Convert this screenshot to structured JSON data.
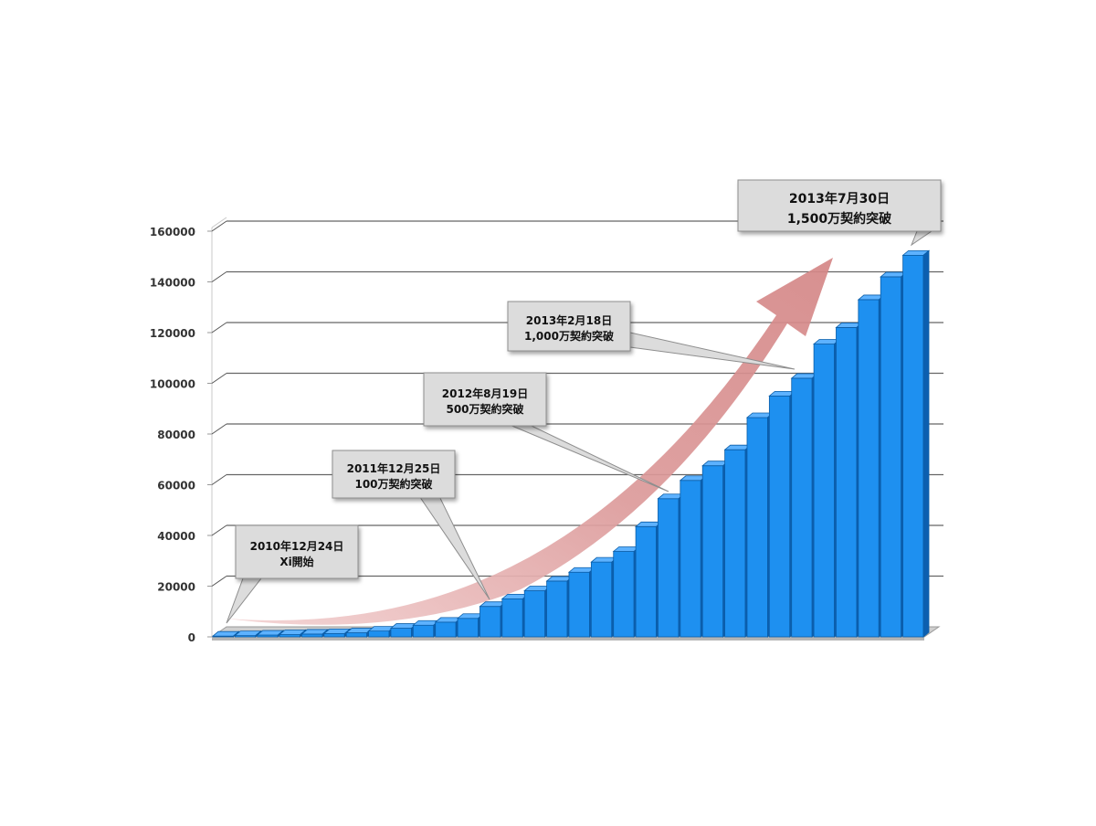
{
  "chart_data": {
    "type": "bar",
    "style": "3d-column",
    "title": "",
    "xlabel": "",
    "ylabel": "",
    "ylim": [
      0,
      160000
    ],
    "yticks": [
      0,
      20000,
      40000,
      60000,
      80000,
      100000,
      120000,
      140000,
      160000
    ],
    "grid": true,
    "legend": false,
    "bar_color": "#1E90F0",
    "arrow_color": "#D98B8B",
    "values": [
      300,
      500,
      700,
      900,
      1100,
      1300,
      1600,
      2300,
      3400,
      4600,
      5800,
      7300,
      12000,
      15000,
      18200,
      22000,
      25500,
      29500,
      33700,
      43500,
      54500,
      61700,
      67500,
      73800,
      86500,
      95000,
      102000,
      115500,
      122000,
      133000,
      142000,
      150500
    ],
    "annotations": [
      {
        "line1": "2010年12月24日",
        "line2": "Xi開始",
        "bar_index": 0,
        "highlight": false
      },
      {
        "line1": "2011年12月25日",
        "line2": "100万契約突破",
        "bar_index": 12,
        "highlight": false
      },
      {
        "line1": "2012年8月19日",
        "line2": "500万契約突破",
        "bar_index": 20,
        "highlight": false
      },
      {
        "line1": "2013年2月18日",
        "line2": "1,000万契約突破",
        "bar_index": 26,
        "highlight": false
      },
      {
        "line1": "2013年7月30日",
        "line2": "1,500万契約突破",
        "bar_index": 31,
        "highlight": true,
        "text_color": "#E8101A"
      }
    ]
  }
}
